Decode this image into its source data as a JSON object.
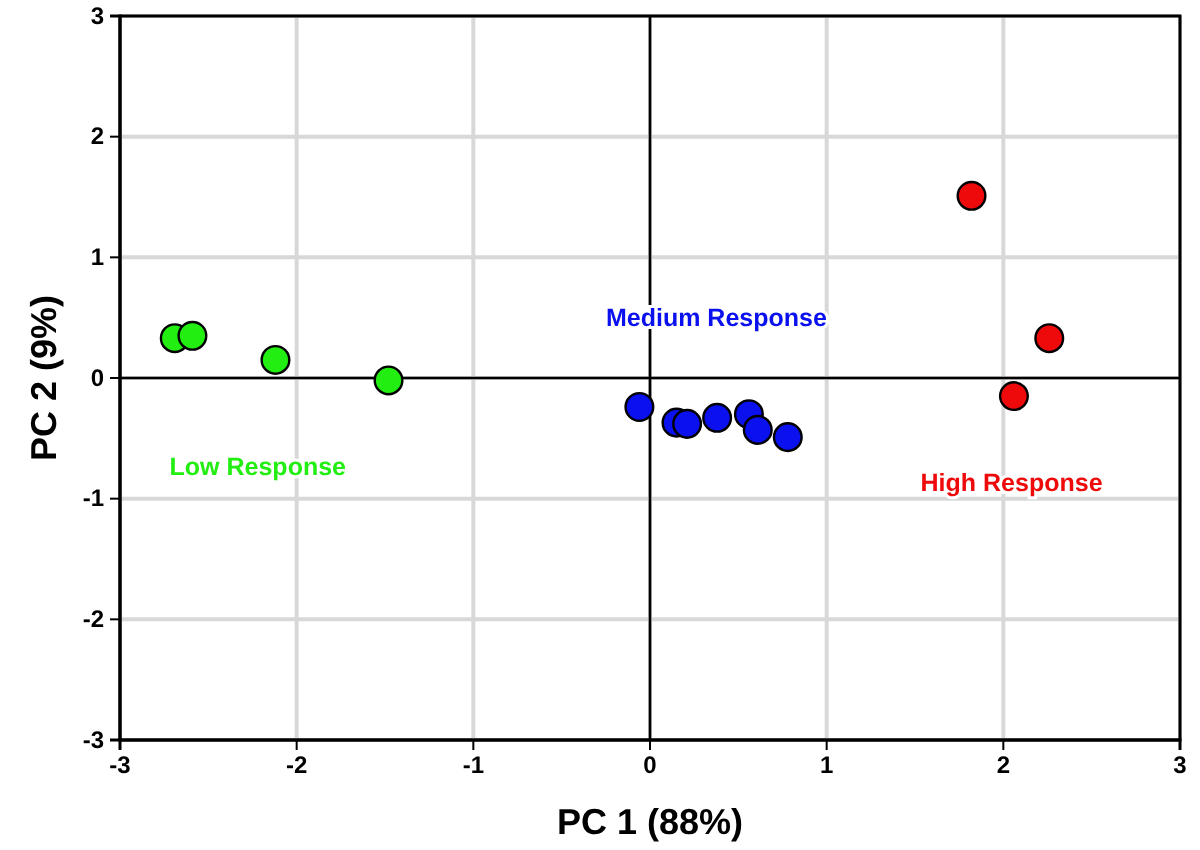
{
  "chart_data": {
    "type": "scatter",
    "xlabel": "PC 1 (88%)",
    "ylabel": "PC 2 (9%)",
    "xlim": [
      -3,
      3
    ],
    "ylim": [
      -3,
      3
    ],
    "xticks": [
      -3,
      -2,
      -1,
      0,
      1,
      2,
      3
    ],
    "yticks": [
      -3,
      -2,
      -1,
      0,
      1,
      2,
      3
    ],
    "grid": true,
    "marker": "circle",
    "series": [
      {
        "name": "Low Response",
        "color": "#22ee11",
        "x": [
          -2.69,
          -2.59,
          -2.12,
          -1.48
        ],
        "values": [
          0.33,
          0.35,
          0.15,
          -0.02
        ]
      },
      {
        "name": "Medium Response",
        "color": "#0a10ee",
        "x": [
          -0.06,
          0.15,
          0.21,
          0.38,
          0.56,
          0.61,
          0.78
        ],
        "values": [
          -0.24,
          -0.37,
          -0.38,
          -0.33,
          -0.3,
          -0.43,
          -0.49
        ]
      },
      {
        "name": "High Response",
        "color": "#ee0a0a",
        "x": [
          1.82,
          2.26,
          2.06
        ],
        "values": [
          1.51,
          0.33,
          -0.15
        ]
      }
    ]
  }
}
